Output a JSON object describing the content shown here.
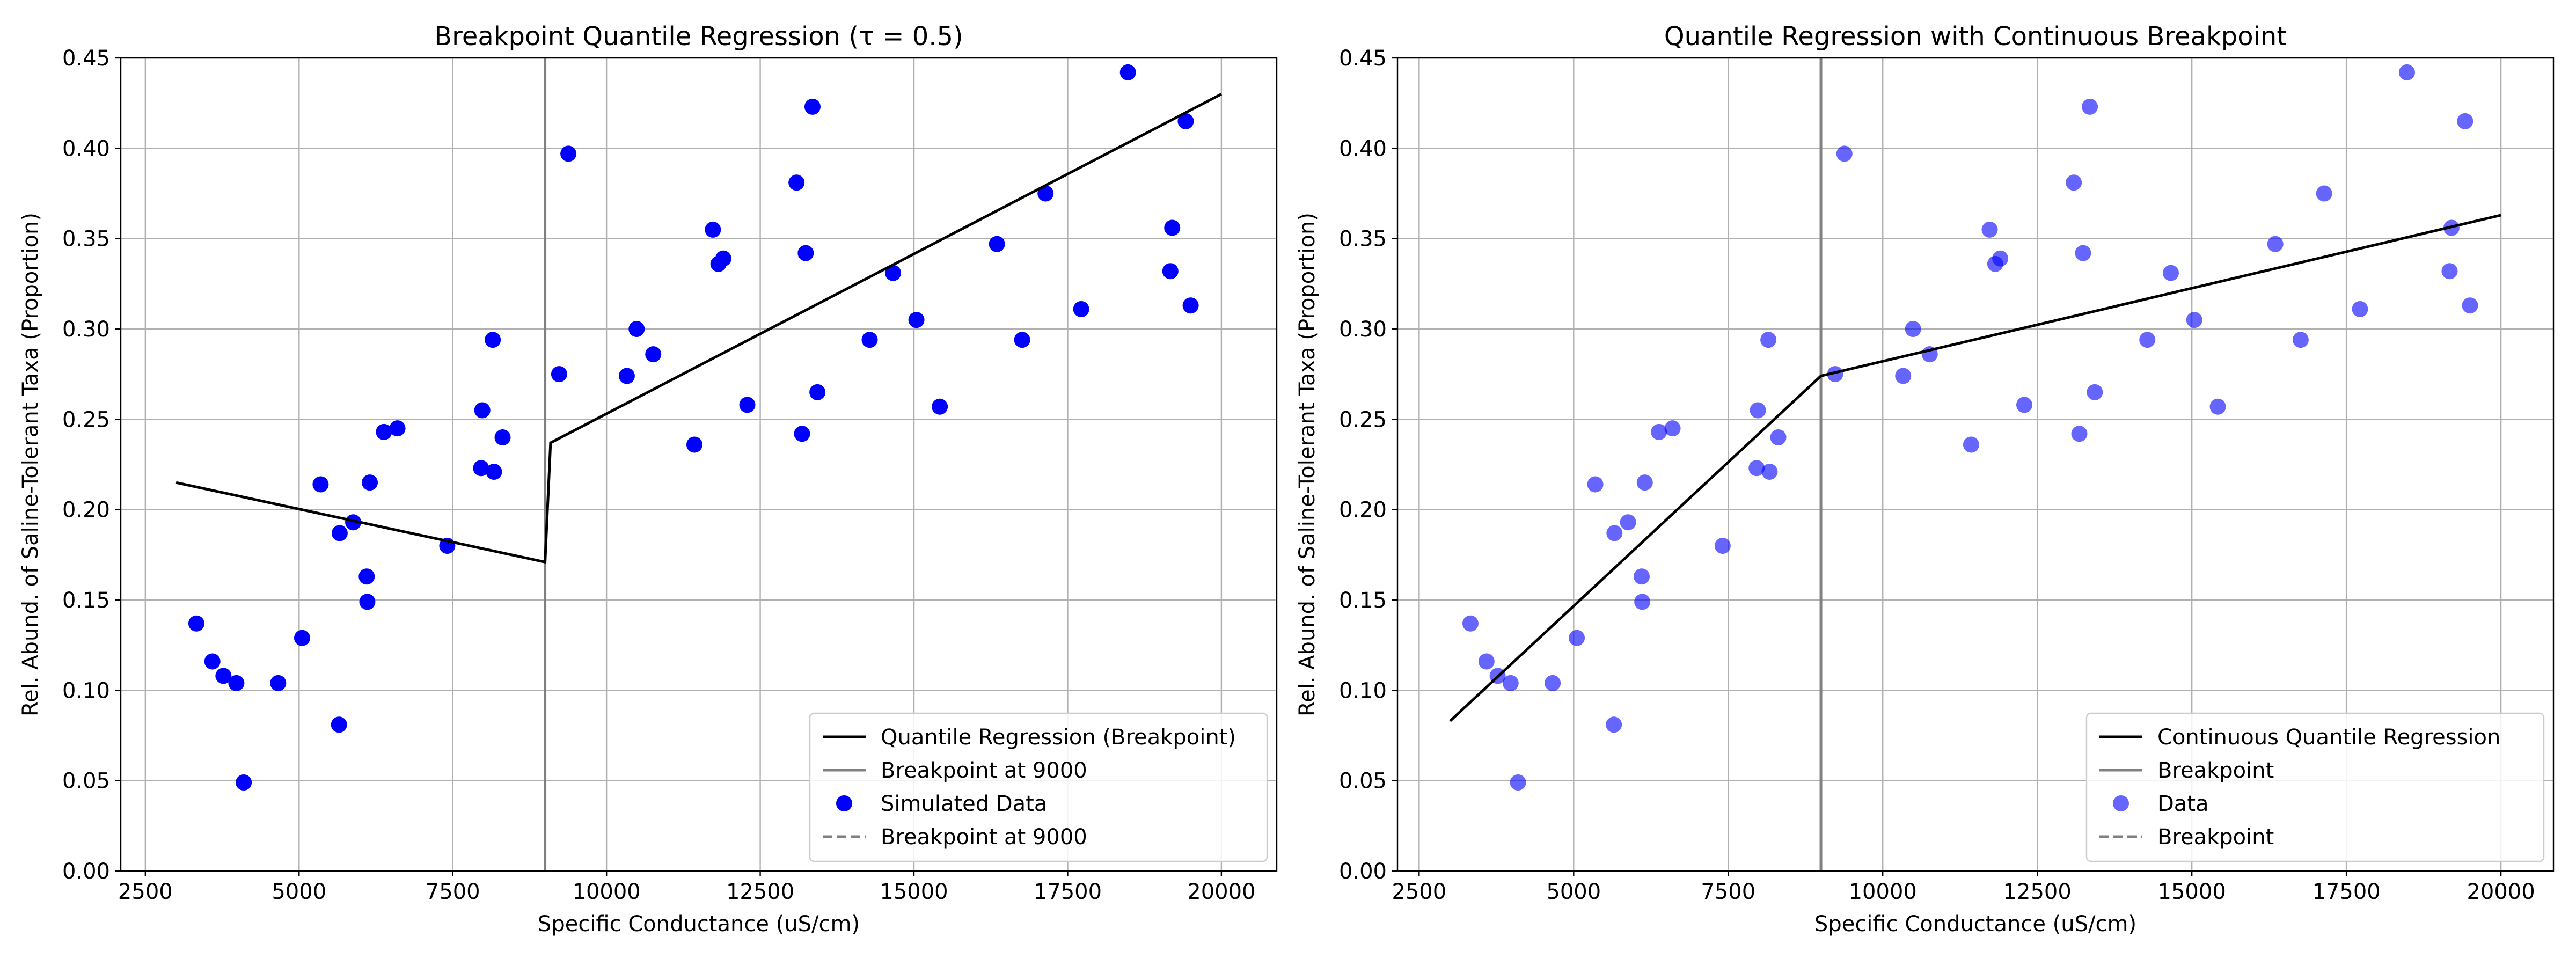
{
  "figure": {
    "background": "#ffffff"
  },
  "chart_data": [
    {
      "type": "scatter",
      "title": "Breakpoint Quantile Regression (τ = 0.5)",
      "xlabel": "Specific Conductance (uS/cm)",
      "ylabel": "Rel. Abund. of Saline-Tolerant Taxa (Proportion)",
      "xlim": [
        2100,
        20900
      ],
      "ylim": [
        0,
        0.45
      ],
      "xticks": [
        2500,
        5000,
        7500,
        10000,
        12500,
        15000,
        17500,
        20000
      ],
      "xtick_labels": [
        "2500",
        "5000",
        "7500",
        "10000",
        "12500",
        "15000",
        "17500",
        "20000"
      ],
      "yticks": [
        0,
        0.05,
        0.1,
        0.15,
        0.2,
        0.25,
        0.3,
        0.35,
        0.4,
        0.45
      ],
      "ytick_labels": [
        "0.00",
        "0.05",
        "0.10",
        "0.15",
        "0.20",
        "0.25",
        "0.30",
        "0.35",
        "0.40",
        "0.45"
      ],
      "grid": true,
      "legend_position": "lower-right",
      "scatter": {
        "name": "Simulated Data",
        "color": "#0000ff",
        "alpha": 1.0,
        "points": [
          [
            3330,
            0.137
          ],
          [
            3590,
            0.116
          ],
          [
            3770,
            0.108
          ],
          [
            3980,
            0.104
          ],
          [
            4100,
            0.049
          ],
          [
            4660,
            0.104
          ],
          [
            5050,
            0.129
          ],
          [
            5350,
            0.214
          ],
          [
            5650,
            0.081
          ],
          [
            5660,
            0.187
          ],
          [
            5880,
            0.193
          ],
          [
            6100,
            0.163
          ],
          [
            6110,
            0.149
          ],
          [
            6150,
            0.215
          ],
          [
            6380,
            0.243
          ],
          [
            6600,
            0.245
          ],
          [
            7410,
            0.18
          ],
          [
            7960,
            0.223
          ],
          [
            7980,
            0.255
          ],
          [
            8150,
            0.294
          ],
          [
            8170,
            0.221
          ],
          [
            8310,
            0.24
          ],
          [
            9230,
            0.275
          ],
          [
            9380,
            0.397
          ],
          [
            10330,
            0.274
          ],
          [
            10490,
            0.3
          ],
          [
            10760,
            0.286
          ],
          [
            11430,
            0.236
          ],
          [
            11730,
            0.355
          ],
          [
            11820,
            0.336
          ],
          [
            11900,
            0.339
          ],
          [
            12290,
            0.258
          ],
          [
            13090,
            0.381
          ],
          [
            13180,
            0.242
          ],
          [
            13240,
            0.342
          ],
          [
            13350,
            0.423
          ],
          [
            13430,
            0.265
          ],
          [
            14280,
            0.294
          ],
          [
            14660,
            0.331
          ],
          [
            15040,
            0.305
          ],
          [
            15420,
            0.257
          ],
          [
            16350,
            0.347
          ],
          [
            16760,
            0.294
          ],
          [
            17140,
            0.375
          ],
          [
            17720,
            0.311
          ],
          [
            18480,
            0.442
          ],
          [
            19170,
            0.332
          ],
          [
            19200,
            0.356
          ],
          [
            19420,
            0.415
          ],
          [
            19500,
            0.313
          ]
        ]
      },
      "fit_line": {
        "name": "Quantile Regression (Breakpoint)",
        "color": "#000000",
        "points": [
          [
            3000,
            0.215
          ],
          [
            9000,
            0.171
          ],
          [
            9090,
            0.237
          ],
          [
            20000,
            0.43
          ]
        ]
      },
      "breakpoint_line": {
        "name": "Breakpoint at 9000",
        "x": 9000,
        "color": "#808080"
      },
      "legend": [
        {
          "label": "Quantile Regression (Breakpoint)",
          "kind": "line",
          "color": "#000000"
        },
        {
          "label": "Breakpoint at 9000",
          "kind": "line",
          "color": "#808080"
        },
        {
          "label": "Simulated Data",
          "kind": "marker",
          "color": "#0000ff"
        },
        {
          "label": "Breakpoint at 9000",
          "kind": "dashed",
          "color": "#808080"
        }
      ]
    },
    {
      "type": "scatter",
      "title": "Quantile Regression with Continuous Breakpoint",
      "xlabel": "Specific Conductance (uS/cm)",
      "ylabel": "Rel. Abund. of Saline-Tolerant Taxa (Proportion)",
      "xlim": [
        2150,
        20850
      ],
      "ylim": [
        0,
        0.45
      ],
      "xticks": [
        2500,
        5000,
        7500,
        10000,
        12500,
        15000,
        17500,
        20000
      ],
      "xtick_labels": [
        "2500",
        "5000",
        "7500",
        "10000",
        "12500",
        "15000",
        "17500",
        "20000"
      ],
      "yticks": [
        0,
        0.05,
        0.1,
        0.15,
        0.2,
        0.25,
        0.3,
        0.35,
        0.4,
        0.45
      ],
      "ytick_labels": [
        "0.00",
        "0.05",
        "0.10",
        "0.15",
        "0.20",
        "0.25",
        "0.30",
        "0.35",
        "0.40",
        "0.45"
      ],
      "grid": true,
      "legend_position": "lower-right",
      "scatter": {
        "name": "Data",
        "color": "#0000ff",
        "alpha": 0.6,
        "points": [
          [
            3330,
            0.137
          ],
          [
            3590,
            0.116
          ],
          [
            3770,
            0.108
          ],
          [
            3980,
            0.104
          ],
          [
            4100,
            0.049
          ],
          [
            4660,
            0.104
          ],
          [
            5050,
            0.129
          ],
          [
            5350,
            0.214
          ],
          [
            5650,
            0.081
          ],
          [
            5660,
            0.187
          ],
          [
            5880,
            0.193
          ],
          [
            6100,
            0.163
          ],
          [
            6110,
            0.149
          ],
          [
            6150,
            0.215
          ],
          [
            6380,
            0.243
          ],
          [
            6600,
            0.245
          ],
          [
            7410,
            0.18
          ],
          [
            7960,
            0.223
          ],
          [
            7980,
            0.255
          ],
          [
            8150,
            0.294
          ],
          [
            8170,
            0.221
          ],
          [
            8310,
            0.24
          ],
          [
            9230,
            0.275
          ],
          [
            9380,
            0.397
          ],
          [
            10330,
            0.274
          ],
          [
            10490,
            0.3
          ],
          [
            10760,
            0.286
          ],
          [
            11430,
            0.236
          ],
          [
            11730,
            0.355
          ],
          [
            11820,
            0.336
          ],
          [
            11900,
            0.339
          ],
          [
            12290,
            0.258
          ],
          [
            13090,
            0.381
          ],
          [
            13180,
            0.242
          ],
          [
            13240,
            0.342
          ],
          [
            13350,
            0.423
          ],
          [
            13430,
            0.265
          ],
          [
            14280,
            0.294
          ],
          [
            14660,
            0.331
          ],
          [
            15040,
            0.305
          ],
          [
            15420,
            0.257
          ],
          [
            16350,
            0.347
          ],
          [
            16760,
            0.294
          ],
          [
            17140,
            0.375
          ],
          [
            17720,
            0.311
          ],
          [
            18480,
            0.442
          ],
          [
            19170,
            0.332
          ],
          [
            19200,
            0.356
          ],
          [
            19420,
            0.415
          ],
          [
            19500,
            0.313
          ]
        ]
      },
      "fit_line": {
        "name": "Continuous Quantile Regression",
        "color": "#000000",
        "points": [
          [
            3000,
            0.083
          ],
          [
            9000,
            0.274
          ],
          [
            20000,
            0.363
          ]
        ]
      },
      "breakpoint_line": {
        "name": "Breakpoint",
        "x": 9000,
        "color": "#808080"
      },
      "legend": [
        {
          "label": "Continuous Quantile Regression",
          "kind": "line",
          "color": "#000000"
        },
        {
          "label": "Breakpoint",
          "kind": "line",
          "color": "#808080"
        },
        {
          "label": "Data",
          "kind": "marker",
          "color": "#0000ff"
        },
        {
          "label": "Breakpoint",
          "kind": "dashed",
          "color": "#808080"
        }
      ]
    }
  ]
}
